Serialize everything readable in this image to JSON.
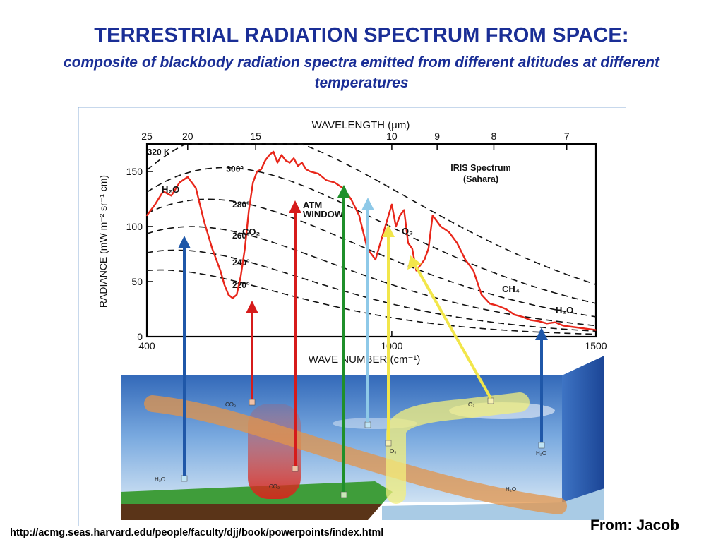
{
  "slide": {
    "title": "TERRESTRIAL RADIATION SPECTRUM FROM SPACE:",
    "subtitle": "composite of blackbody radiation spectra emitted from different altitudes at different temperatures",
    "url": "http://acmg.seas.harvard.edu/people/faculty/djj/book/powerpoints/index.html",
    "credit": "From: Jacob"
  },
  "chart_data": {
    "type": "line",
    "title": "IRIS Spectrum",
    "subtitle": "(Sahara)",
    "xlabel": "WAVE NUMBER (cm⁻¹)",
    "x2label": "WAVELENGTH (μm)",
    "ylabel": "RADIANCE (mW m⁻² sr⁻¹ cm)",
    "xlim": [
      400,
      1500
    ],
    "ylim": [
      0,
      175
    ],
    "x_ticks": [
      "400",
      "1000",
      "1500"
    ],
    "y_ticks": [
      "0",
      "50",
      "100",
      "150"
    ],
    "top_ticks": [
      "25",
      "20",
      "15",
      "10",
      "9",
      "8",
      "7"
    ],
    "top_tick_values": [
      25,
      20,
      15,
      10,
      9,
      8,
      7
    ],
    "blackbody_curves": [
      {
        "label": "320 K",
        "T": 320
      },
      {
        "label": "300º",
        "T": 300
      },
      {
        "label": "280º",
        "T": 280
      },
      {
        "label": "260º",
        "T": 260
      },
      {
        "label": "240º",
        "T": 240
      },
      {
        "label": "220º",
        "T": 220
      }
    ],
    "series": [
      {
        "name": "",
        "color": "#e8261a",
        "x": [
          400,
          420,
          440,
          460,
          480,
          500,
          520,
          540,
          560,
          580,
          590,
          600,
          610,
          620,
          630,
          640,
          650,
          660,
          670,
          680,
          690,
          700,
          710,
          720,
          730,
          740,
          750,
          760,
          770,
          780,
          790,
          800,
          820,
          840,
          860,
          880,
          900,
          920,
          940,
          960,
          980,
          1000,
          1010,
          1020,
          1030,
          1040,
          1050,
          1060,
          1070,
          1080,
          1090,
          1100,
          1120,
          1140,
          1160,
          1180,
          1200,
          1220,
          1240,
          1260,
          1280,
          1300,
          1320,
          1340,
          1360,
          1380,
          1400,
          1420,
          1440,
          1460,
          1480,
          1500
        ],
        "y": [
          110,
          120,
          132,
          128,
          140,
          145,
          135,
          105,
          80,
          60,
          47,
          38,
          35,
          38,
          55,
          80,
          115,
          140,
          150,
          152,
          160,
          165,
          168,
          158,
          165,
          160,
          158,
          162,
          155,
          158,
          152,
          150,
          148,
          142,
          140,
          135,
          125,
          110,
          80,
          70,
          95,
          120,
          100,
          110,
          115,
          85,
          80,
          60,
          65,
          70,
          80,
          110,
          100,
          95,
          85,
          70,
          60,
          38,
          30,
          28,
          25,
          20,
          18,
          15,
          14,
          12,
          13,
          10,
          9,
          8,
          7,
          6
        ]
      }
    ],
    "annotations": {
      "bands": [
        {
          "label": "H₂O"
        },
        {
          "label": "CO₂"
        },
        {
          "label": "ATM\nWINDOW"
        },
        {
          "label": "O₃"
        },
        {
          "label": "CH₄"
        },
        {
          "label": "H₂O"
        }
      ],
      "diagram_labels": {
        "co2_upper": "CO₂",
        "co2_lower": "CO₂",
        "h2o_left": "H₂O",
        "o3_upper": "O₃",
        "o3_lower": "O₃",
        "h2o_right": "H₂O",
        "h2o_band": "H₂O"
      }
    },
    "arrow_colors": {
      "h2o": "#1f57a8",
      "co2": "#d61b1b",
      "window_green": "#1f8f2a",
      "window_blue": "#8ec9e8",
      "o3": "#f2e64a",
      "h2o_right": "#1f57a8"
    },
    "grid": false,
    "legend": "none"
  }
}
